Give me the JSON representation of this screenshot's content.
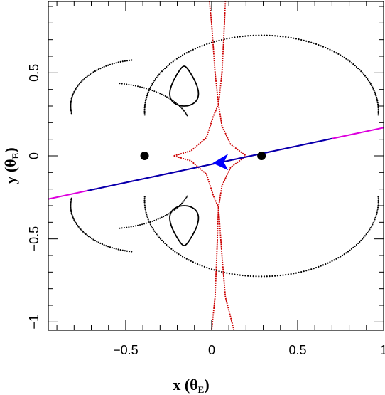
{
  "chart_data": {
    "type": "scatter",
    "title": "",
    "xlabel": "x (θE)",
    "ylabel": "y (θE)",
    "xlabel_parts": {
      "prefix": "x (θ",
      "sub": "E",
      "suffix": ")"
    },
    "ylabel_parts": {
      "prefix": "y (θ",
      "sub": "E",
      "suffix": ")"
    },
    "xlim": [
      -0.95,
      1.0
    ],
    "ylim": [
      -1.05,
      0.93
    ],
    "x_ticks": [
      -0.5,
      0,
      0.5,
      1
    ],
    "x_tick_labels": [
      "−0.5",
      "0",
      "0.5",
      "1"
    ],
    "y_ticks": [
      -1,
      -0.5,
      0,
      0.5
    ],
    "y_tick_labels": [
      "−1",
      "−0.5",
      "0",
      "0.5"
    ],
    "grid": false,
    "legend": "none",
    "lenses": [
      {
        "x": -0.39,
        "y": 0.0
      },
      {
        "x": 0.29,
        "y": 0.0
      }
    ],
    "critical_curve_color": "#000000",
    "caustic_color": "#cc0000",
    "trajectory": {
      "start": {
        "x": -0.95,
        "y": -0.26
      },
      "end": {
        "x": 1.0,
        "y": 0.17
      },
      "inner_from_x": -0.72,
      "inner_to_x": 0.7,
      "outer_color": "#dd00dd",
      "inner_color": "#0000aa",
      "arrow_color": "#0000ff",
      "arrow_at": {
        "x": 0.055,
        "y": -0.035
      }
    }
  }
}
